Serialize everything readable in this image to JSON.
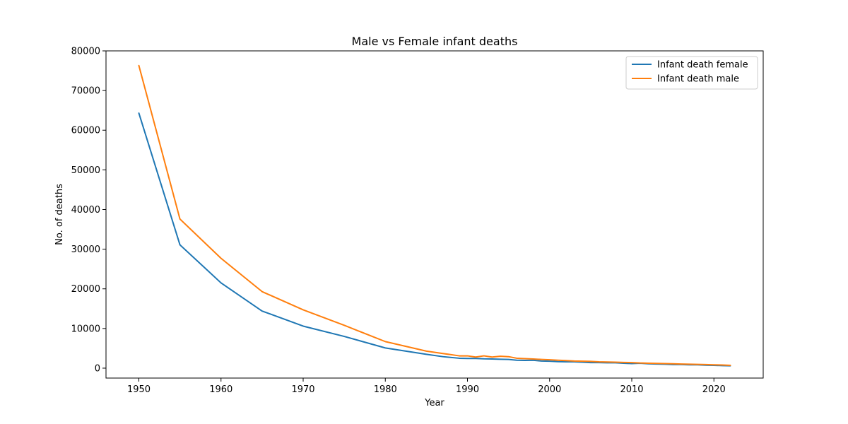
{
  "chart_data": {
    "type": "line",
    "title": "Male vs Female infant deaths",
    "xlabel": "Year",
    "ylabel": "No. of deaths",
    "xlim": [
      1946,
      2026
    ],
    "ylim": [
      -2500,
      80000
    ],
    "x_ticks": [
      1950,
      1960,
      1970,
      1980,
      1990,
      2000,
      2010,
      2020
    ],
    "y_ticks": [
      0,
      10000,
      20000,
      30000,
      40000,
      50000,
      60000,
      70000,
      80000
    ],
    "grid": false,
    "legend_position": "top-right",
    "series": [
      {
        "name": "Infant death female",
        "color": "#1f77b4",
        "x": [
          1950,
          1955,
          1960,
          1965,
          1970,
          1975,
          1980,
          1985,
          1987,
          1989,
          1990,
          1991,
          1992,
          1993,
          1994,
          1995,
          1996,
          1997,
          1998,
          1999,
          2000,
          2001,
          2002,
          2003,
          2004,
          2005,
          2006,
          2007,
          2008,
          2009,
          2010,
          2011,
          2012,
          2013,
          2014,
          2015,
          2016,
          2017,
          2018,
          2019,
          2020,
          2021,
          2022
        ],
        "values": [
          64300,
          31100,
          21500,
          14400,
          10600,
          8000,
          5100,
          3500,
          2900,
          2500,
          2450,
          2450,
          2350,
          2300,
          2250,
          2200,
          2000,
          1950,
          2000,
          1800,
          1750,
          1650,
          1600,
          1600,
          1500,
          1400,
          1400,
          1350,
          1350,
          1250,
          1150,
          1250,
          1100,
          1050,
          1000,
          900,
          900,
          850,
          850,
          750,
          700,
          650,
          600
        ]
      },
      {
        "name": "Infant death male",
        "color": "#ff7f0e",
        "x": [
          1950,
          1955,
          1960,
          1965,
          1970,
          1975,
          1980,
          1985,
          1987,
          1989,
          1990,
          1991,
          1992,
          1993,
          1994,
          1995,
          1996,
          1997,
          1998,
          1999,
          2000,
          2001,
          2002,
          2003,
          2004,
          2005,
          2006,
          2007,
          2008,
          2009,
          2010,
          2011,
          2012,
          2013,
          2014,
          2015,
          2016,
          2017,
          2018,
          2019,
          2020,
          2021,
          2022
        ],
        "values": [
          76300,
          37600,
          27700,
          19300,
          14700,
          10800,
          6700,
          4300,
          3700,
          3100,
          3100,
          2800,
          3100,
          2800,
          3000,
          2900,
          2500,
          2400,
          2300,
          2200,
          2100,
          2000,
          1900,
          1800,
          1750,
          1700,
          1600,
          1550,
          1500,
          1450,
          1400,
          1300,
          1250,
          1200,
          1150,
          1100,
          1050,
          1000,
          950,
          900,
          850,
          800,
          700
        ]
      }
    ]
  }
}
